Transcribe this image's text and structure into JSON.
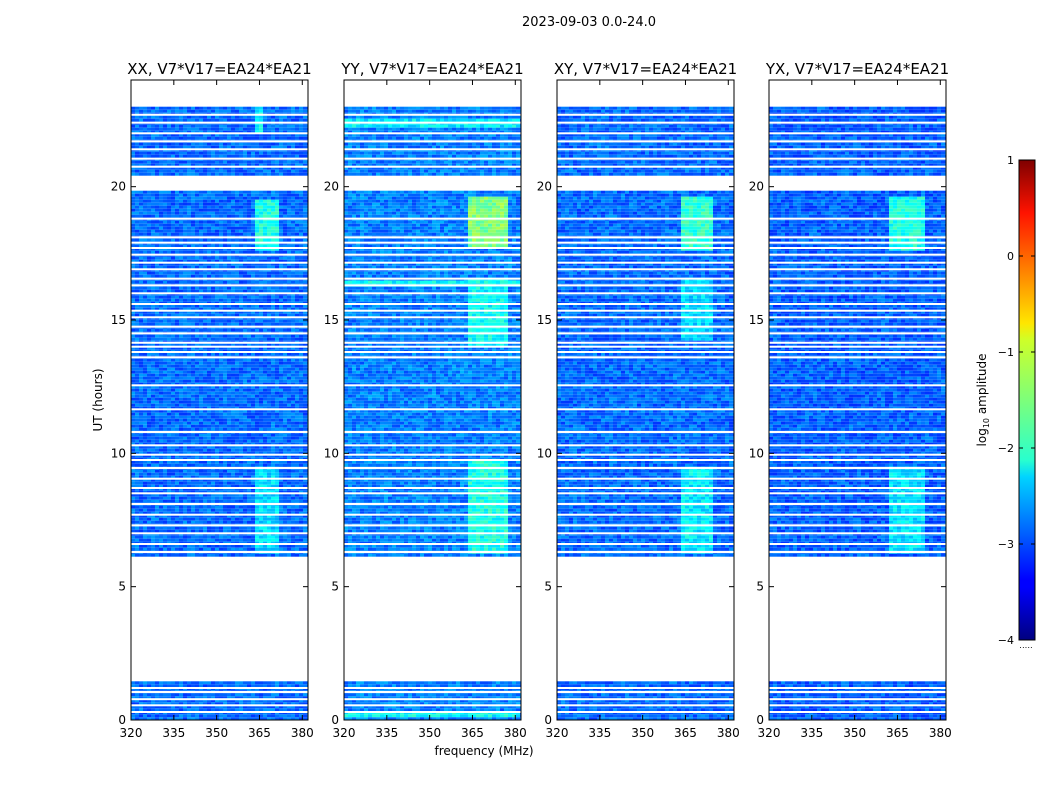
{
  "figure": {
    "suptitle": "2023-09-03 0.0-24.0",
    "xlabel": "frequency (MHz)",
    "ylabel": "UT (hours)",
    "colorbar_label_prefix": "log",
    "colorbar_label_subscript": "10",
    "colorbar_label_suffix": " amplitude",
    "colorbar_ticks": [
      "1",
      "0",
      "−1",
      "−2",
      "−3",
      "−4"
    ],
    "colorbar_footer": "․․․․․"
  },
  "chart_data": {
    "type": "heatmap",
    "colormap": "jet",
    "clim": [
      -4,
      1
    ],
    "colorbar_tick_values": [
      1,
      0,
      -1,
      -2,
      -3,
      -4
    ],
    "xlim": [
      320,
      382
    ],
    "ylim": [
      0,
      24
    ],
    "xticks": [
      320,
      335,
      350,
      365,
      380
    ],
    "xtick_labels": [
      "320",
      "335",
      "350",
      "365",
      "380"
    ],
    "yticks": [
      0,
      5,
      10,
      15,
      20
    ],
    "ytick_labels": [
      "0",
      "5",
      "10",
      "15",
      "20"
    ],
    "data_blocks_ut": [
      [
        0.0,
        1.45
      ],
      [
        6.2,
        19.85
      ],
      [
        20.45,
        23.0
      ]
    ],
    "flagged_lines_ut": [
      0.3,
      0.55,
      0.78,
      1.05,
      1.2,
      6.3,
      6.6,
      7.0,
      7.3,
      7.7,
      8.1,
      8.5,
      8.7,
      9.05,
      9.45,
      9.75,
      9.95,
      10.3,
      10.8,
      11.65,
      12.55,
      13.6,
      13.8,
      14.0,
      14.15,
      14.5,
      14.75,
      15.1,
      15.35,
      15.6,
      16.0,
      16.3,
      16.55,
      16.9,
      17.15,
      17.45,
      17.7,
      17.9,
      18.1,
      18.8,
      20.75,
      21.05,
      21.4,
      21.7,
      22.0,
      22.4,
      22.7
    ],
    "series": [
      {
        "name": "XX, V7*V17=EA24*EA21",
        "base_log_amplitude": -2.85,
        "bright_bands": [
          {
            "freq": [
              363,
              372
            ],
            "ut": [
              6.2,
              9.5
            ],
            "log_amplitude": -2.3
          },
          {
            "freq": [
              363,
              372
            ],
            "ut": [
              17.6,
              19.5
            ],
            "log_amplitude": -2.0
          },
          {
            "freq": [
              363,
              366
            ],
            "ut": [
              22.0,
              23.0
            ],
            "log_amplitude": -2.1
          }
        ]
      },
      {
        "name": "YY, V7*V17=EA24*EA21",
        "base_log_amplitude": -2.75,
        "bright_bands": [
          {
            "freq": [
              363,
              378
            ],
            "ut": [
              6.2,
              9.7
            ],
            "log_amplitude": -2.0
          },
          {
            "freq": [
              363,
              378
            ],
            "ut": [
              14.0,
              16.6
            ],
            "log_amplitude": -2.1
          },
          {
            "freq": [
              363,
              378
            ],
            "ut": [
              17.7,
              19.6
            ],
            "log_amplitude": -1.5
          },
          {
            "freq": [
              320,
              382
            ],
            "ut": [
              16.25,
              16.5
            ],
            "log_amplitude": -2.1
          },
          {
            "freq": [
              320,
              382
            ],
            "ut": [
              0.1,
              0.35
            ],
            "log_amplitude": -2.1
          },
          {
            "freq": [
              320,
              382
            ],
            "ut": [
              22.2,
              22.5
            ],
            "log_amplitude": -2.2
          }
        ]
      },
      {
        "name": "XY, V7*V17=EA24*EA21",
        "base_log_amplitude": -2.85,
        "bright_bands": [
          {
            "freq": [
              363,
              374
            ],
            "ut": [
              6.2,
              9.5
            ],
            "log_amplitude": -2.2
          },
          {
            "freq": [
              363,
              374
            ],
            "ut": [
              17.6,
              19.6
            ],
            "log_amplitude": -1.9
          },
          {
            "freq": [
              363,
              374
            ],
            "ut": [
              14.2,
              16.6
            ],
            "log_amplitude": -2.3
          }
        ]
      },
      {
        "name": "YX, V7*V17=EA24*EA21",
        "base_log_amplitude": -2.9,
        "bright_bands": [
          {
            "freq": [
              362,
              374
            ],
            "ut": [
              6.2,
              9.5
            ],
            "log_amplitude": -2.25
          },
          {
            "freq": [
              362,
              374
            ],
            "ut": [
              17.6,
              19.6
            ],
            "log_amplitude": -2.0
          }
        ]
      }
    ]
  }
}
